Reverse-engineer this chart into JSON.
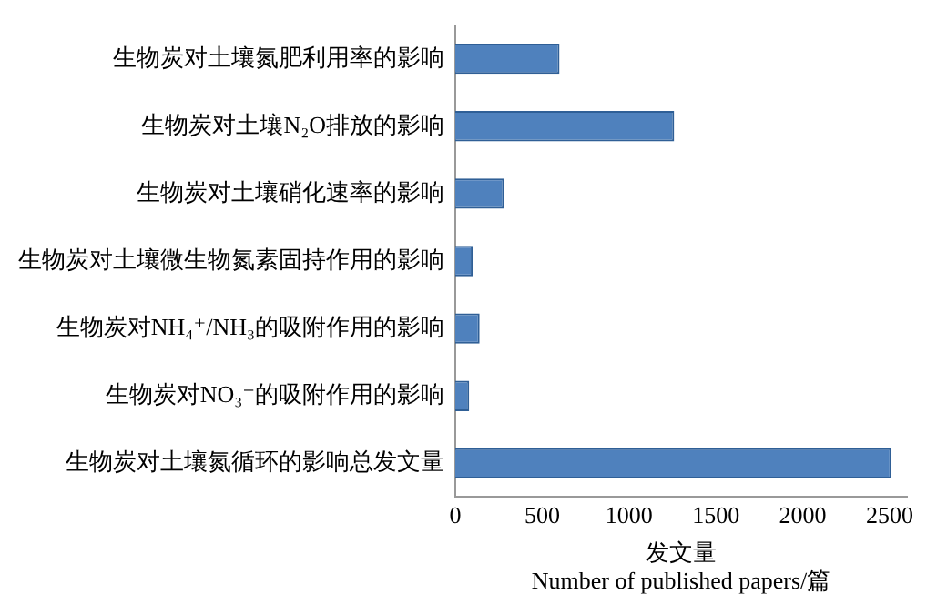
{
  "chart_data": {
    "type": "bar",
    "orientation": "horizontal",
    "categories": [
      "生物炭对土壤氮肥利用率的影响",
      "生物炭对土壤N₂O排放的影响",
      "生物炭对土壤硝化速率的影响",
      "生物炭对土壤微生物氮素固持作用的影响",
      "生物炭对NH₄⁺/NH₃的吸附作用的影响",
      "生物炭对NO₃⁻的吸附作用的影响",
      "生物炭对土壤氮循环的影响总发文量"
    ],
    "values": [
      600,
      1260,
      280,
      100,
      140,
      80,
      2510
    ],
    "color": "#4f81bd",
    "xlim": [
      0,
      2600
    ],
    "xticks": [
      0,
      500,
      1000,
      1500,
      2000,
      2500
    ],
    "xlabel": "发文量\nNumber of published papers/篇",
    "grid": false,
    "legend": false
  }
}
